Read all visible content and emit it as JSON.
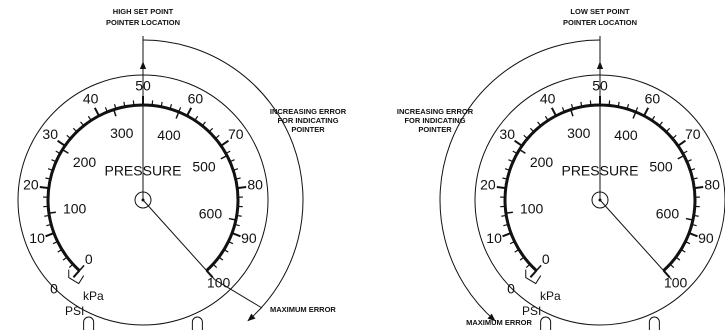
{
  "gauges": [
    {
      "set_point_label": [
        "HIGH SET POINT",
        "POINTER LOCATION"
      ],
      "error_label": [
        "INCREASING ERROR",
        "FOR INDICATING",
        "POINTER"
      ],
      "max_error_label": "MAXIMUM ERROR",
      "dial_label": "PRESSURE",
      "inner_unit": "kPa",
      "outer_unit": "PSI",
      "psi_scale": [
        0,
        10,
        20,
        30,
        40,
        50,
        60,
        70,
        80,
        90,
        100
      ],
      "kpa_scale": [
        0,
        100,
        200,
        300,
        400,
        500,
        600
      ]
    },
    {
      "set_point_label": [
        "LOW SET POINT",
        "POINTER LOCATION"
      ],
      "error_label": [
        "INCREASING ERROR",
        "FOR INDICATING",
        "POINTER"
      ],
      "max_error_label": "MAXIMUM ERROR",
      "dial_label": "PRESSURE",
      "inner_unit": "kPa",
      "outer_unit": "PSI",
      "psi_scale": [
        0,
        10,
        20,
        30,
        40,
        50,
        60,
        70,
        80,
        90,
        100
      ],
      "kpa_scale": [
        0,
        100,
        200,
        300,
        400,
        500,
        600
      ]
    }
  ]
}
